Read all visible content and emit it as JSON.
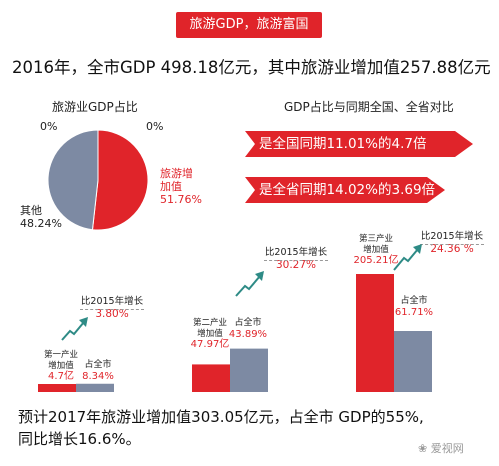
{
  "tag": "旅游GDP，旅游富国",
  "headline": "2016年，全市GDP 498.18亿元，其中旅游业增加值257.88亿元",
  "pie": {
    "title": "旅游业GDP占比",
    "zero_left": "0%",
    "zero_right": "0%",
    "tourism_label_1": "旅游增",
    "tourism_label_2": "加值",
    "tourism_value": "51.76%",
    "other_label": "其他",
    "other_value": "48.24%"
  },
  "comparison": {
    "title": "GDP占比与同期全国、全省对比",
    "banner_national": "是全国同期11.01%的4.7倍",
    "banner_province": "是全省同期14.02%的3.69倍"
  },
  "industries": [
    {
      "line1": "第一产业",
      "line2": "增加值",
      "value_text": "4.7亿",
      "share_label": "占全市",
      "share_text": "8.34%",
      "growth_label": "比2015年增长",
      "growth_text": "3.80%"
    },
    {
      "line1": "第二产业",
      "line2": "增加值",
      "value_text": "47.97亿",
      "share_label": "占全市",
      "share_text": "43.89%",
      "growth_label": "比2015年增长",
      "growth_text": "30.27%"
    },
    {
      "line1": "第三产业",
      "line2": "增加值",
      "value_text": "205.21亿",
      "share_label": "占全市",
      "share_text": "61.71%",
      "growth_label": "比2015年增长",
      "growth_text": "24.36 %"
    }
  ],
  "footer_line1": "预计2017年旅游业增加值303.05亿元，占全市 GDP的55%,",
  "footer_line2": "同比增长16.6%。",
  "watermark": "爱视网",
  "colors": {
    "red": "#e0242a",
    "slate": "#7d8aa3",
    "teal": "#2e8b86"
  },
  "chart_data": [
    {
      "type": "pie",
      "title": "旅游业GDP占比",
      "slices": [
        {
          "name": "旅游增加值",
          "value": 51.76
        },
        {
          "name": "其他",
          "value": 48.24
        }
      ]
    },
    {
      "type": "bar",
      "categories": [
        "第一产业",
        "第二产业",
        "第三产业"
      ],
      "series": [
        {
          "values": [
            4.7,
            47.97,
            205.21
          ]
        },
        {
          "name": "占全市",
          "values": [
            8.34,
            43.89,
            61.71
          ]
        }
      ],
      "growth_vs_2015": [
        3.8,
        30.27,
        24.36
      ]
    }
  ]
}
